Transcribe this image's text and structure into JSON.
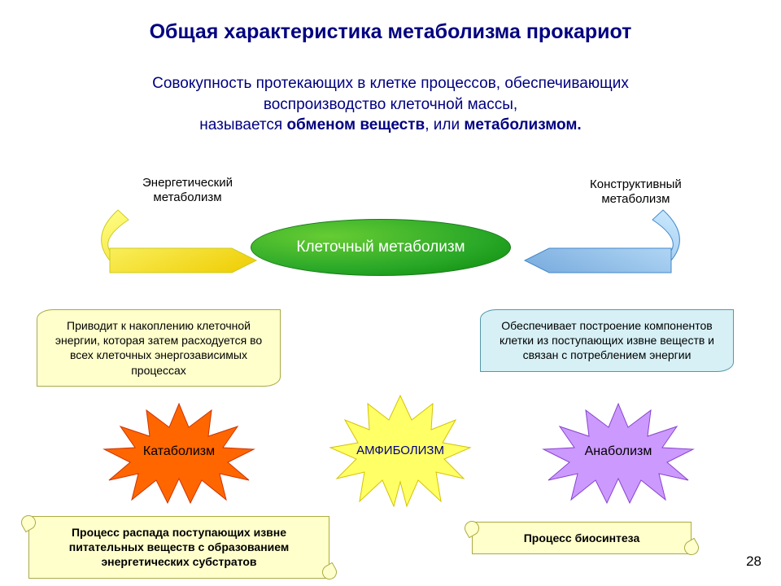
{
  "title": "Общая характеристика метаболизма прокариот",
  "subtitle": {
    "line1": "Совокупность протекающих в клетке процессов, обеспечивающих",
    "line2": "воспроизводство клеточной массы,",
    "line3a": "называется ",
    "line3b": "обменом веществ",
    "line3c": ", или ",
    "line3d": "метаболизмом."
  },
  "labels": {
    "energy": "Энергетический\nметаболизм",
    "constructive": "Конструктивный\nметаболизм"
  },
  "center": "Клеточный метаболизм",
  "banners": {
    "left": "Приводит к накоплению клеточной энергии, которая затем расходуется во всех клеточных энергозависимых процессах",
    "right": "Обеспечивает построение компонентов клетки из поступающих извне веществ и связан с потреблением энергии"
  },
  "bursts": {
    "catabolism": {
      "label": "Катаболизм",
      "fill": "#ff6600",
      "stroke": "#cc3300"
    },
    "amphibolism": {
      "label": "АМФИБОЛИЗМ",
      "fill": "#ffff66",
      "stroke": "#d4c400",
      "color": "#000080"
    },
    "anabolism": {
      "label": "Анаболизм",
      "fill": "#cc99ff",
      "stroke": "#8844cc"
    }
  },
  "scrolls": {
    "left": "Процесс распада поступающих извне питательных веществ с образованием энергетических субстратов",
    "right": "Процесс биосинтеза"
  },
  "pagenum": "28",
  "arrows": {
    "left": {
      "fill": "#ffee00",
      "stroke": "#cccc22"
    },
    "right": {
      "fill": "#99ccee",
      "stroke": "#4488cc"
    }
  },
  "colors": {
    "title": "#000080",
    "banner_left_bg": "#ffffcc",
    "banner_left_border": "#aaaa44",
    "banner_right_bg": "#d6f0f5",
    "banner_right_border": "#5598aa",
    "ellipse_gradient": [
      "#66cc33",
      "#2aa828",
      "#0a8a0a"
    ]
  },
  "typography": {
    "title_fontsize": 25,
    "subtitle_fontsize": 19,
    "label_fontsize": 15,
    "center_fontsize": 19,
    "banner_fontsize": 14,
    "burst_fontsize": 16,
    "scroll_fontsize": 14
  }
}
